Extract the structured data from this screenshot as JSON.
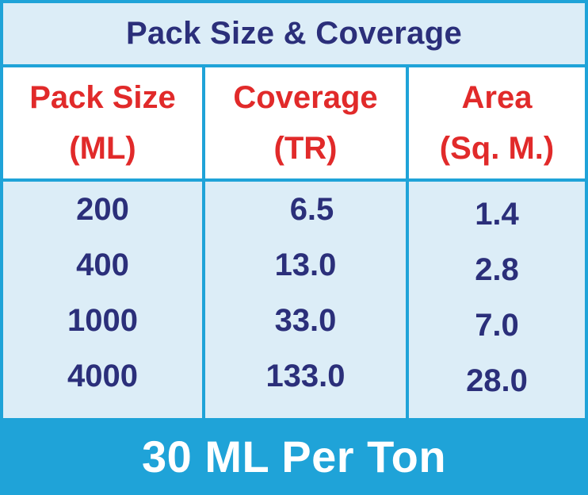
{
  "title": "Pack Size & Coverage",
  "columns": [
    {
      "line1": "Pack Size",
      "line2": "(ML)"
    },
    {
      "line1": "Coverage",
      "line2": "(TR)"
    },
    {
      "line1": "Area",
      "line2": "(Sq. M.)"
    }
  ],
  "rows": [
    [
      "200",
      "6.5",
      "1.4"
    ],
    [
      "400",
      "13.0",
      "2.8"
    ],
    [
      "1000",
      "33.0",
      "7.0"
    ],
    [
      "4000",
      "133.0",
      "28.0"
    ]
  ],
  "footer": "30 ML Per Ton",
  "colors": {
    "border": "#1fa3d8",
    "header_text": "#e12a2a",
    "body_text": "#2b2f7a",
    "panel_bg": "#dcedf7"
  }
}
